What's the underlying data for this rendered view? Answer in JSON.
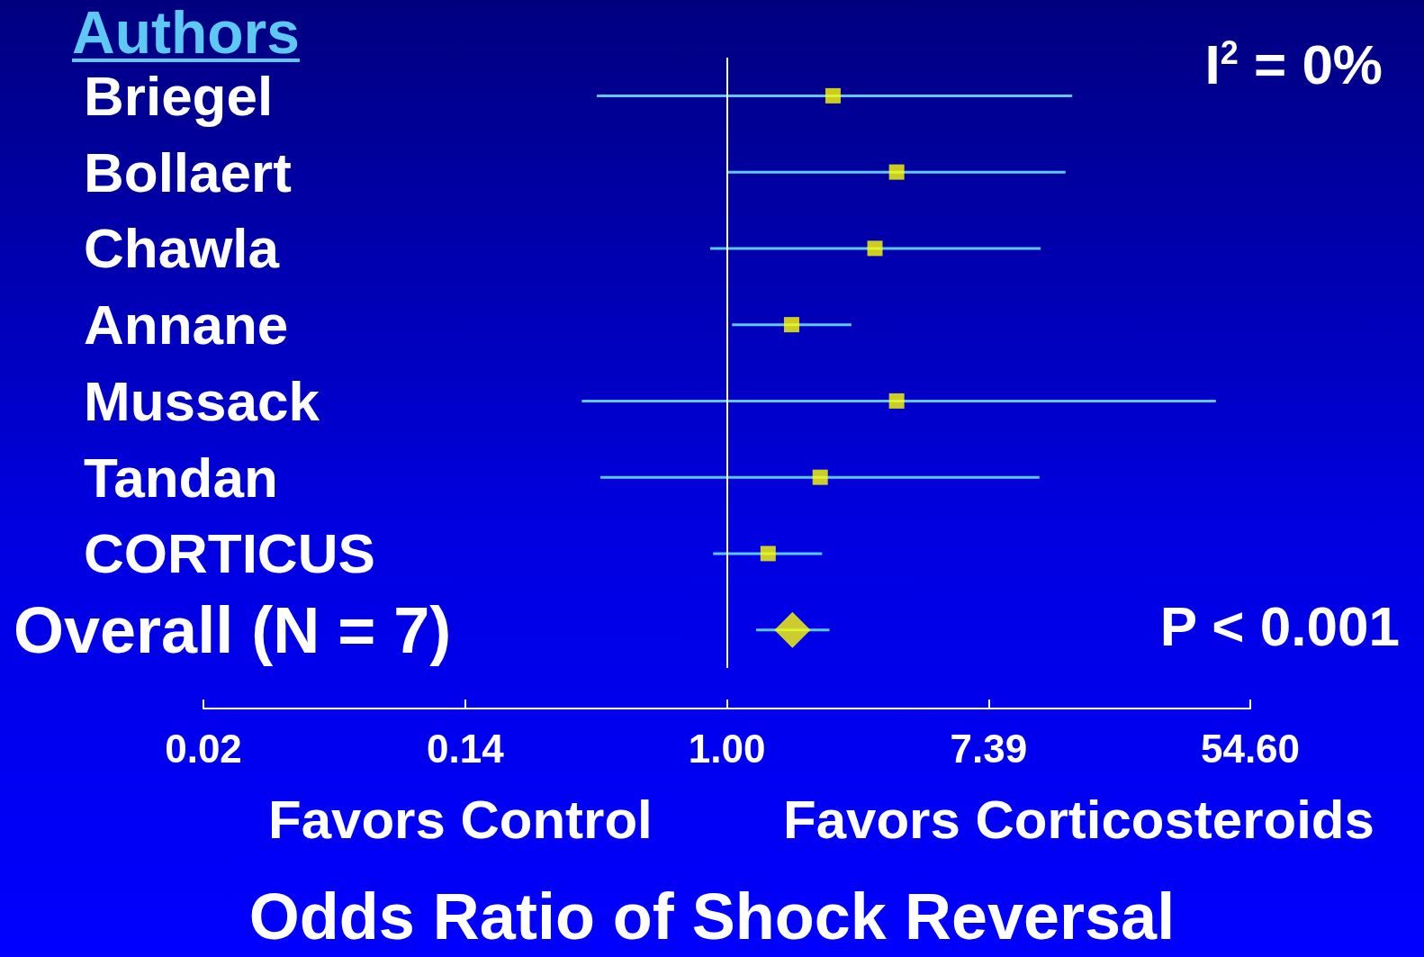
{
  "chart_data": {
    "type": "scatter",
    "orientation": "horizontal",
    "ylabel": "Authors",
    "xlabel": "Odds Ratio of Shock Reversal",
    "categories": [
      "Briegel",
      "Bollaert",
      "Chawla",
      "Annane",
      "Mussack",
      "Tandan",
      "CORTICUS",
      "Overall (N = 7)"
    ],
    "series": [
      {
        "color": "#ffff00",
        "marker": "square",
        "values": [
          2.25,
          3.66,
          3.1,
          1.64,
          3.66,
          2.04,
          1.37,
          null
        ],
        "errors": [
          [
            0.37,
            14
          ],
          [
            1.0,
            13.3
          ],
          [
            0.88,
            11
          ],
          [
            1.04,
            2.59
          ],
          [
            0.33,
            42
          ],
          [
            0.38,
            10.9
          ],
          [
            0.9,
            2.07
          ],
          null
        ]
      },
      {
        "color": "#ffff00",
        "marker": "diamond",
        "values": [
          null,
          null,
          null,
          null,
          null,
          null,
          null,
          1.65
        ],
        "errors": [
          null,
          null,
          null,
          null,
          null,
          null,
          null,
          [
            1.25,
            2.19
          ]
        ]
      }
    ],
    "log": "x",
    "xlim": [
      0.0183,
      54.6
    ],
    "xticks": [
      {
        "value": 0.0183,
        "label": "0.02"
      },
      {
        "value": 0.1353,
        "label": "0.14"
      },
      {
        "value": 1,
        "label": "1.00"
      },
      {
        "value": 7.389,
        "label": "7.39"
      },
      {
        "value": 54.6,
        "label": "54.60"
      }
    ],
    "ref_lines": [
      {
        "axis": "x",
        "value": 1,
        "color": "#ffffff"
      }
    ],
    "annotations": [
      "I$^{2}$ = 0%",
      "P < 0.001",
      "Favors Control",
      "Favors Corticosteroids"
    ],
    "grid": false
  }
}
